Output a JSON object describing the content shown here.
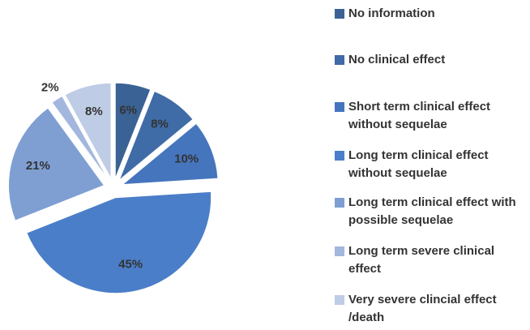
{
  "chart_data": {
    "type": "pie",
    "categories": [
      "No information",
      "No clinical effect",
      "Short term clinical effect without sequelae",
      "Long term clinical effect without sequelae",
      "Long term clinical effect with possible sequelae",
      "Long term severe clinical effect",
      "Very severe clincial effect /death"
    ],
    "values": [
      6,
      8,
      10,
      45,
      21,
      2,
      8
    ],
    "value_labels": [
      "6%",
      "8%",
      "10%",
      "45%",
      "21%",
      "2%",
      "8%"
    ],
    "colors": [
      "#3b6294",
      "#3f6ba6",
      "#4575bd",
      "#4b7ec8",
      "#7f9fd3",
      "#a3b7de",
      "#bfcce6"
    ],
    "legend": "right"
  }
}
